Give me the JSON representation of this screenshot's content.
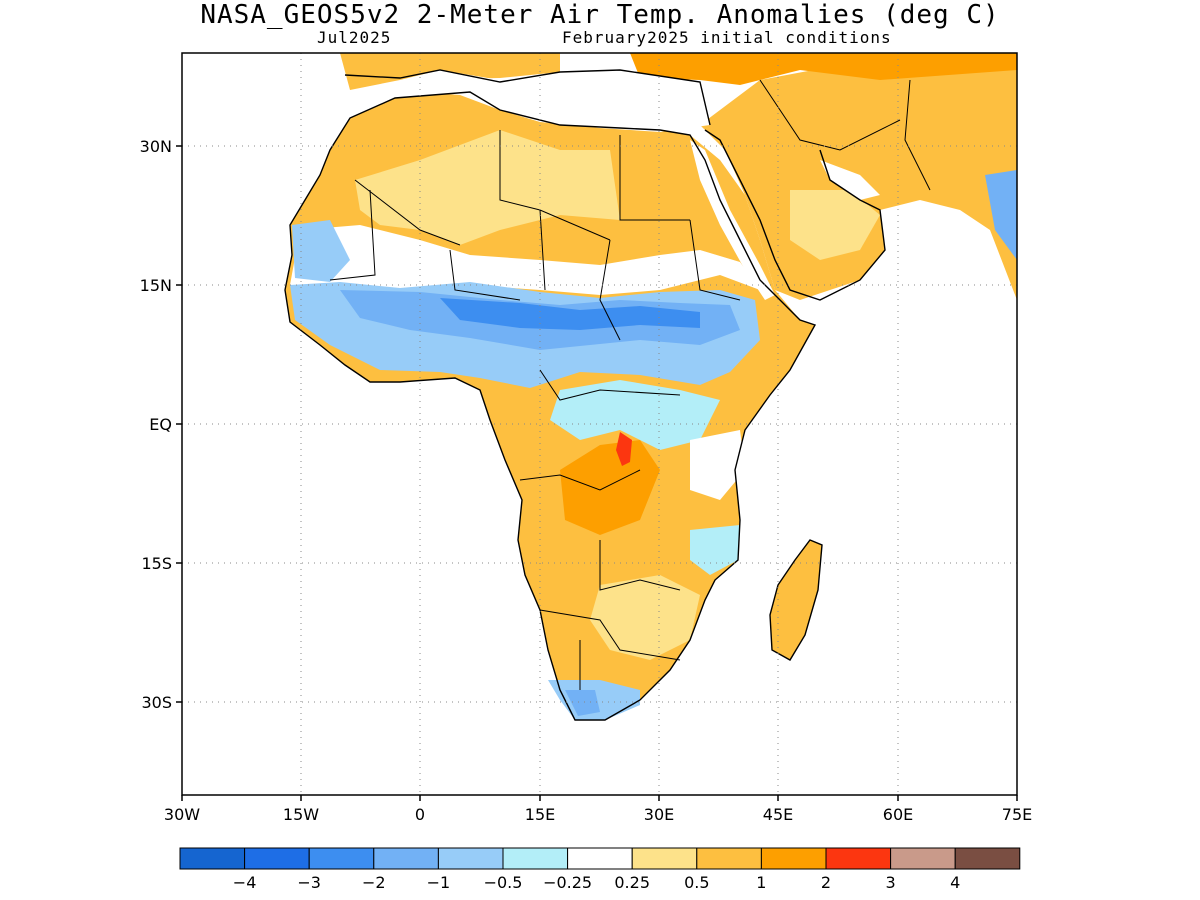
{
  "title": "NASA_GEOS5v2 2-Meter Air Temp. Anomalies (deg C)",
  "subtitle_left": "Jul2025",
  "subtitle_right": "February2025 initial conditions",
  "map": {
    "lon_range": [
      -30,
      75
    ],
    "lat_range": [
      -46,
      40
    ],
    "lon_ticks": [
      "30W",
      "15W",
      "0",
      "15E",
      "30E",
      "45E",
      "60E",
      "75E"
    ],
    "lat_ticks": [
      "30N",
      "15N",
      "EQ",
      "15S",
      "30S"
    ]
  },
  "colorbar": {
    "colors": [
      "#1565d0",
      "#1e6ee6",
      "#3d8ef0",
      "#72b1f5",
      "#97ccf8",
      "#b3eef8",
      "#ffffff",
      "#fde28a",
      "#fdbf40",
      "#fd9f00",
      "#fc3610",
      "#c99a8a",
      "#7a4e42"
    ],
    "labels": [
      "−4",
      "−3",
      "−2",
      "−1",
      "−0.5",
      "−0.25",
      "0.25",
      "0.5",
      "1",
      "2",
      "3",
      "4"
    ]
  },
  "legend_colors": {
    "land_warm": "#fdbf40",
    "land_mild": "#fde28a",
    "land_cool": "#97ccf8",
    "land_cold": "#72b1f5",
    "hot_spot": "#fc3610"
  }
}
